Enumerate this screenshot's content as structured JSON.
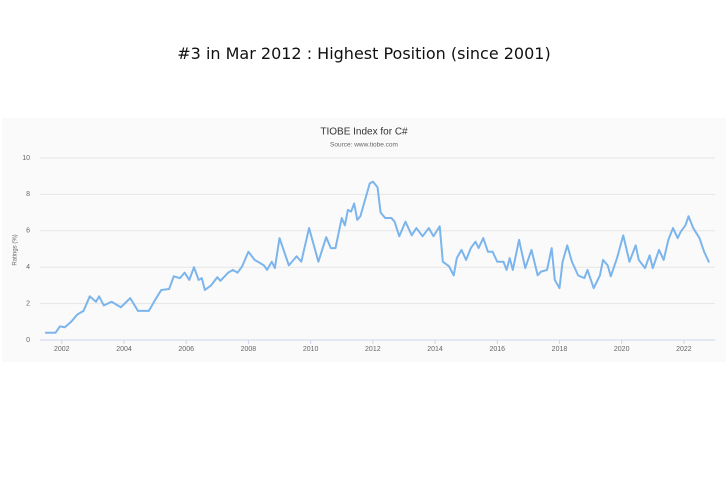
{
  "heading": "#3 in Mar 2012 : Highest Position (since 2001)",
  "chart_data": {
    "type": "line",
    "title": "TIOBE Index for C#",
    "subtitle": "Source: www.tiobe.com",
    "y_label": "Ratings (%)",
    "xlim": [
      2001.3,
      2023.0
    ],
    "xticks": [
      2002,
      2004,
      2006,
      2008,
      2010,
      2012,
      2014,
      2016,
      2018,
      2020,
      2022
    ],
    "ylim": [
      0,
      10
    ],
    "yticks": [
      0,
      2,
      4,
      6,
      8,
      10
    ],
    "grid": true,
    "series": [
      {
        "name": "C#",
        "color": "#7cb5ec",
        "x": [
          2001.49,
          2001.8,
          2001.94,
          2002.1,
          2002.3,
          2002.5,
          2002.7,
          2002.9,
          2003.1,
          2003.2,
          2003.35,
          2003.6,
          2003.9,
          2004.2,
          2004.45,
          2004.8,
          2005.0,
          2005.2,
          2005.45,
          2005.6,
          2005.8,
          2005.95,
          2006.1,
          2006.25,
          2006.4,
          2006.5,
          2006.6,
          2006.8,
          2007.0,
          2007.1,
          2007.35,
          2007.5,
          2007.65,
          2007.8,
          2008.0,
          2008.2,
          2008.5,
          2008.6,
          2008.75,
          2008.85,
          2009.0,
          2009.3,
          2009.55,
          2009.7,
          2009.95,
          2010.25,
          2010.5,
          2010.65,
          2010.8,
          2011.0,
          2011.1,
          2011.2,
          2011.3,
          2011.4,
          2011.5,
          2011.6,
          2011.75,
          2011.9,
          2012.0,
          2012.15,
          2012.25,
          2012.4,
          2012.6,
          2012.7,
          2012.85,
          2013.05,
          2013.25,
          2013.4,
          2013.6,
          2013.8,
          2013.95,
          2014.15,
          2014.25,
          2014.45,
          2014.6,
          2014.7,
          2014.85,
          2015.0,
          2015.15,
          2015.3,
          2015.4,
          2015.55,
          2015.7,
          2015.85,
          2016.0,
          2016.2,
          2016.3,
          2016.4,
          2016.5,
          2016.7,
          2016.9,
          2017.1,
          2017.3,
          2017.4,
          2017.6,
          2017.75,
          2017.85,
          2018.0,
          2018.1,
          2018.25,
          2018.4,
          2018.6,
          2018.8,
          2018.9,
          2019.1,
          2019.3,
          2019.4,
          2019.55,
          2019.65,
          2019.85,
          2020.05,
          2020.25,
          2020.45,
          2020.55,
          2020.75,
          2020.9,
          2021.0,
          2021.2,
          2021.35,
          2021.5,
          2021.65,
          2021.8,
          2021.9,
          2022.05,
          2022.15,
          2022.3,
          2022.5,
          2022.65,
          2022.8
        ],
        "values": [
          0.4,
          0.4,
          0.75,
          0.7,
          1.0,
          1.4,
          1.6,
          2.4,
          2.1,
          2.4,
          1.9,
          2.1,
          1.8,
          2.3,
          1.6,
          1.6,
          2.2,
          2.75,
          2.8,
          3.5,
          3.4,
          3.7,
          3.3,
          4.0,
          3.3,
          3.4,
          2.75,
          3.0,
          3.45,
          3.25,
          3.7,
          3.85,
          3.7,
          4.05,
          4.85,
          4.4,
          4.1,
          3.85,
          4.3,
          3.95,
          5.6,
          4.1,
          4.6,
          4.3,
          6.15,
          4.3,
          5.65,
          5.05,
          5.05,
          6.7,
          6.3,
          7.15,
          7.05,
          7.5,
          6.6,
          6.8,
          7.7,
          8.6,
          8.7,
          8.4,
          7.0,
          6.7,
          6.7,
          6.5,
          5.7,
          6.5,
          5.75,
          6.15,
          5.7,
          6.15,
          5.7,
          6.25,
          4.3,
          4.05,
          3.55,
          4.5,
          4.95,
          4.4,
          5.05,
          5.4,
          5.05,
          5.6,
          4.85,
          4.85,
          4.3,
          4.3,
          3.85,
          4.5,
          3.85,
          5.5,
          3.95,
          4.95,
          3.55,
          3.75,
          3.85,
          5.05,
          3.3,
          2.85,
          4.3,
          5.2,
          4.3,
          3.55,
          3.4,
          3.85,
          2.85,
          3.55,
          4.4,
          4.1,
          3.5,
          4.5,
          5.75,
          4.3,
          5.2,
          4.4,
          3.95,
          4.65,
          3.95,
          4.95,
          4.4,
          5.5,
          6.15,
          5.6,
          5.95,
          6.3,
          6.8,
          6.15,
          5.6,
          4.85,
          4.3
        ]
      }
    ]
  }
}
